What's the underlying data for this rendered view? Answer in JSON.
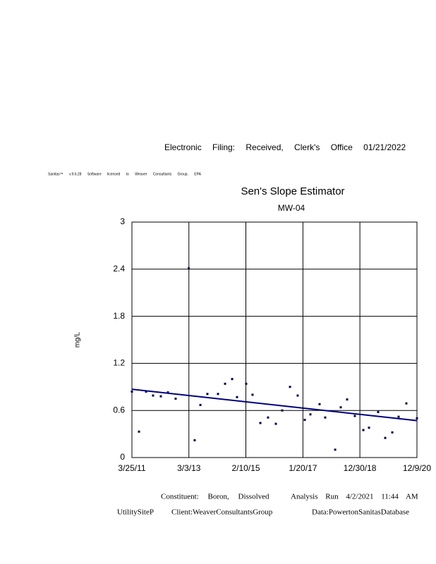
{
  "header": {
    "filing": "Electronic Filing: Received, Clerk's Office 01/21/2022",
    "license": "Sanitas™ v.9.6.28 Software licensed to Weaver Consultants Group. EPA"
  },
  "chart_data": {
    "type": "scatter",
    "title": "Sen's Slope Estimator",
    "subtitle": "MW-04",
    "y_label": "mg/L",
    "x": [
      "2011-03-25",
      "2011-06-21",
      "2011-09-17",
      "2011-12-13",
      "2012-03-19",
      "2012-06-15",
      "2012-09-19",
      "2013-03-01",
      "2013-05-14",
      "2013-07-24",
      "2013-10-19",
      "2014-02-28",
      "2014-05-27",
      "2014-08-23",
      "2014-10-23",
      "2015-02-14",
      "2015-05-04",
      "2015-08-09",
      "2015-11-13",
      "2016-02-18",
      "2016-05-07",
      "2016-08-12",
      "2016-11-16",
      "2017-02-12",
      "2017-04-23",
      "2017-08-15",
      "2017-10-24",
      "2018-02-25",
      "2018-05-06",
      "2018-07-24",
      "2018-10-28",
      "2019-02-11",
      "2019-04-22",
      "2019-08-14",
      "2019-11-10",
      "2020-02-06",
      "2020-04-25",
      "2020-07-30",
      "2020-12-09"
    ],
    "series": [
      {
        "color": "#000040",
        "values": [
          0.84,
          0.33,
          0.84,
          0.79,
          0.78,
          0.83,
          0.75,
          2.41,
          0.22,
          0.67,
          0.81,
          0.81,
          0.94,
          1.0,
          0.77,
          0.94,
          0.8,
          0.44,
          0.51,
          0.43,
          0.6,
          0.9,
          0.79,
          0.48,
          0.55,
          0.68,
          0.51,
          0.1,
          0.64,
          0.74,
          0.53,
          0.35,
          0.38,
          0.58,
          0.25,
          0.32,
          0.52,
          0.69,
          0.5
        ]
      }
    ],
    "trend": {
      "x": [
        "2011-03-25",
        "2020-12-09"
      ],
      "values": [
        0.87,
        0.47
      ],
      "color": "#000080"
    },
    "xlim": [
      "2011-03-25",
      "2020-12-09"
    ],
    "xticks": [
      {
        "value": "2011-03-25",
        "label": "3/25/11"
      },
      {
        "value": "2013-03-03",
        "label": "3/3/13"
      },
      {
        "value": "2015-02-10",
        "label": "2/10/15"
      },
      {
        "value": "2017-01-20",
        "label": "1/20/17"
      },
      {
        "value": "2018-12-30",
        "label": "12/30/18"
      },
      {
        "value": "2020-12-09",
        "label": "12/9/20"
      }
    ],
    "ylim": [
      0,
      3
    ],
    "yticks": [
      0,
      0.6,
      1.2,
      1.8,
      2.4,
      3
    ],
    "grid": true
  },
  "footer": {
    "constituent": "Constituent: Boron, Dissolved",
    "run": "Analysis Run 4/2/2021 11:44 AM",
    "site": "UtilitySiteP",
    "client": "Client:WeaverConsultantsGroup",
    "database": "Data:PowertonSanitasDatabase"
  }
}
